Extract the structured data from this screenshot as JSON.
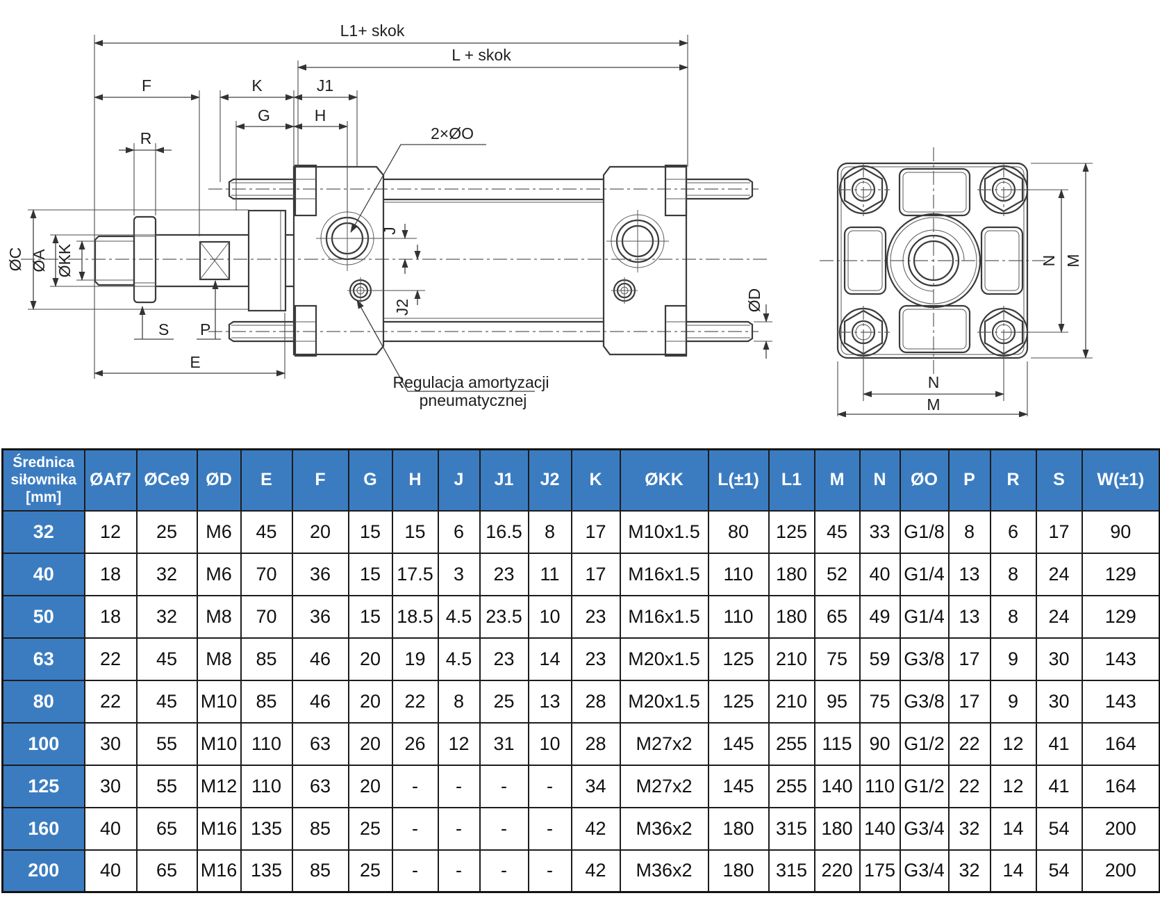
{
  "colors": {
    "accent_blue": "#3b7cc1",
    "line_color": "#3a3a3a",
    "header_text": "#ffffff"
  },
  "drawing": {
    "labels": {
      "l1_skok": "L1+ skok",
      "l_skok": "L + skok",
      "f": "F",
      "k": "K",
      "j1": "J1",
      "g": "G",
      "h": "H",
      "r": "R",
      "ports": "2×ØO",
      "oc": "ØC",
      "oa": "ØA",
      "okk": "ØKK",
      "s": "S",
      "p": "P",
      "e": "E",
      "j": "J",
      "j2": "J2",
      "od": "ØD",
      "n": "N",
      "m": "M",
      "cushion_note_1": "Regulacja amortyzacji",
      "cushion_note_2": "pneumatycznej"
    }
  },
  "table": {
    "columns": [
      "Średnica siłownika [mm]",
      "ØAf7",
      "ØCe9",
      "ØD",
      "E",
      "F",
      "G",
      "H",
      "J",
      "J1",
      "J2",
      "K",
      "ØKK",
      "L(±1)",
      "L1",
      "M",
      "N",
      "ØO",
      "P",
      "R",
      "S",
      "W(±1)"
    ],
    "rows": [
      {
        "size": "32",
        "values": [
          "12",
          "25",
          "M6",
          "45",
          "20",
          "15",
          "15",
          "6",
          "16.5",
          "8",
          "17",
          "M10x1.5",
          "80",
          "125",
          "45",
          "33",
          "G1/8",
          "8",
          "6",
          "17",
          "90"
        ]
      },
      {
        "size": "40",
        "values": [
          "18",
          "32",
          "M6",
          "70",
          "36",
          "15",
          "17.5",
          "3",
          "23",
          "11",
          "17",
          "M16x1.5",
          "110",
          "180",
          "52",
          "40",
          "G1/4",
          "13",
          "8",
          "24",
          "129"
        ]
      },
      {
        "size": "50",
        "values": [
          "18",
          "32",
          "M8",
          "70",
          "36",
          "15",
          "18.5",
          "4.5",
          "23.5",
          "10",
          "23",
          "M16x1.5",
          "110",
          "180",
          "65",
          "49",
          "G1/4",
          "13",
          "8",
          "24",
          "129"
        ]
      },
      {
        "size": "63",
        "values": [
          "22",
          "45",
          "M8",
          "85",
          "46",
          "20",
          "19",
          "4.5",
          "23",
          "14",
          "23",
          "M20x1.5",
          "125",
          "210",
          "75",
          "59",
          "G3/8",
          "17",
          "9",
          "30",
          "143"
        ]
      },
      {
        "size": "80",
        "values": [
          "22",
          "45",
          "M10",
          "85",
          "46",
          "20",
          "22",
          "8",
          "25",
          "13",
          "28",
          "M20x1.5",
          "125",
          "210",
          "95",
          "75",
          "G3/8",
          "17",
          "9",
          "30",
          "143"
        ]
      },
      {
        "size": "100",
        "values": [
          "30",
          "55",
          "M10",
          "110",
          "63",
          "20",
          "26",
          "12",
          "31",
          "10",
          "28",
          "M27x2",
          "145",
          "255",
          "115",
          "90",
          "G1/2",
          "22",
          "12",
          "41",
          "164"
        ]
      },
      {
        "size": "125",
        "values": [
          "30",
          "55",
          "M12",
          "110",
          "63",
          "20",
          "-",
          "-",
          "-",
          "-",
          "34",
          "M27x2",
          "145",
          "255",
          "140",
          "110",
          "G1/2",
          "22",
          "12",
          "41",
          "164"
        ]
      },
      {
        "size": "160",
        "values": [
          "40",
          "65",
          "M16",
          "135",
          "85",
          "25",
          "-",
          "-",
          "-",
          "-",
          "42",
          "M36x2",
          "180",
          "315",
          "180",
          "140",
          "G3/4",
          "32",
          "14",
          "54",
          "200"
        ]
      },
      {
        "size": "200",
        "values": [
          "40",
          "65",
          "M16",
          "135",
          "85",
          "25",
          "-",
          "-",
          "-",
          "-",
          "42",
          "M36x2",
          "180",
          "315",
          "220",
          "175",
          "G3/4",
          "32",
          "14",
          "54",
          "200"
        ]
      }
    ]
  }
}
